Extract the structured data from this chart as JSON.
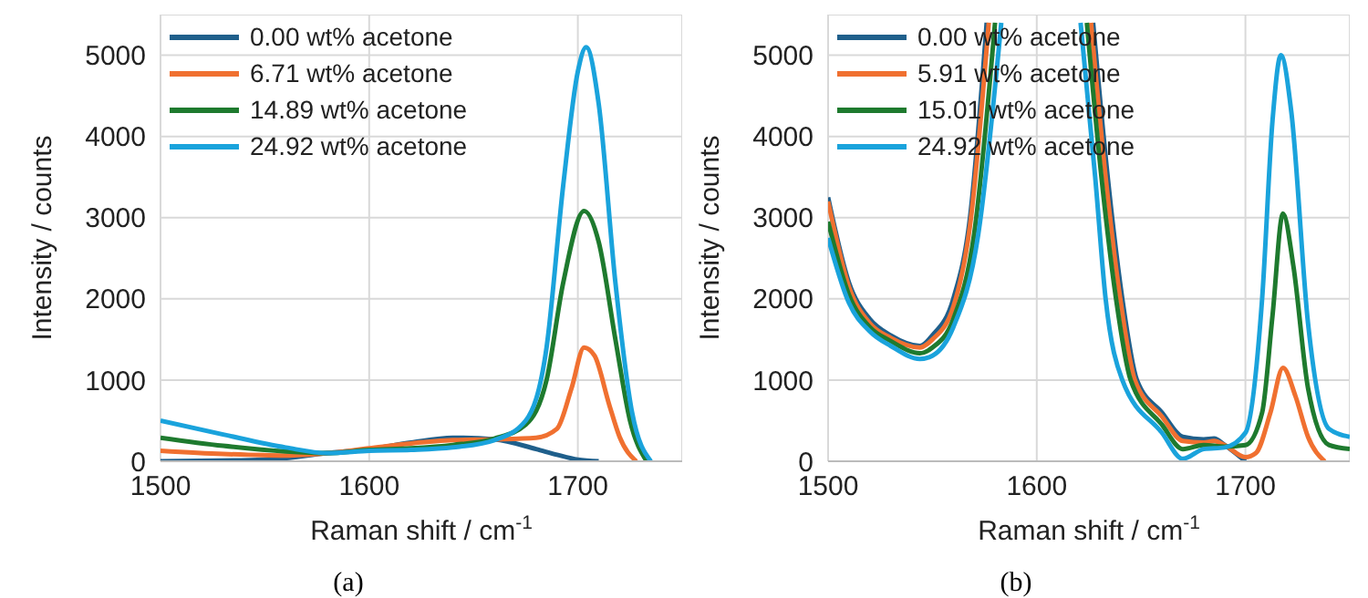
{
  "chart_data": [
    {
      "type": "line",
      "xlabel": "Raman shift / cm$^{-1}$",
      "ylabel": "Intensity / counts",
      "xlim": [
        1500,
        1750
      ],
      "xticks": [
        1500,
        1600,
        1700
      ],
      "ylim": [
        0,
        5500
      ],
      "yticks": [
        0,
        1000,
        2000,
        3000,
        4000,
        5000
      ],
      "grid": true,
      "legend": "top left",
      "marker": "none",
      "line_style": "solid",
      "annotations": [
        "(a)"
      ],
      "series": [
        {
          "name": "0.00 wt% acetone",
          "color": "#1f5f8b",
          "x": [
            1500,
            1550,
            1580,
            1600,
            1620,
            1640,
            1660,
            1680,
            1690,
            1700,
            1710
          ],
          "values": [
            0,
            20,
            100,
            150,
            230,
            290,
            270,
            150,
            80,
            20,
            0
          ]
        },
        {
          "name": "6.71 wt% acetone",
          "color": "#f07030",
          "x": [
            1500,
            1530,
            1560,
            1580,
            1600,
            1620,
            1640,
            1660,
            1680,
            1690,
            1697,
            1703,
            1708,
            1715,
            1720,
            1728
          ],
          "values": [
            130,
            90,
            70,
            100,
            160,
            220,
            260,
            270,
            290,
            400,
            900,
            1400,
            1300,
            700,
            300,
            0
          ]
        },
        {
          "name": "14.89 wt% acetone",
          "color": "#1e7a2e",
          "x": [
            1500,
            1530,
            1560,
            1580,
            1600,
            1620,
            1640,
            1660,
            1675,
            1685,
            1693,
            1703,
            1710,
            1718,
            1725,
            1733
          ],
          "values": [
            290,
            190,
            120,
            100,
            140,
            160,
            200,
            280,
            450,
            1000,
            2200,
            3080,
            2700,
            1500,
            500,
            0
          ]
        },
        {
          "name": "24.92 wt% acetone",
          "color": "#1aa3dc",
          "x": [
            1500,
            1530,
            1560,
            1580,
            1600,
            1620,
            1640,
            1660,
            1675,
            1685,
            1693,
            1700,
            1704,
            1710,
            1718,
            1726,
            1735
          ],
          "values": [
            500,
            330,
            170,
            100,
            130,
            140,
            170,
            260,
            500,
            1400,
            3400,
            4800,
            5100,
            4400,
            2200,
            600,
            0
          ]
        }
      ]
    },
    {
      "type": "line",
      "xlabel": "Raman shift / cm$^{-1}$",
      "ylabel": "Intensity / counts",
      "xlim": [
        1500,
        1750
      ],
      "xticks": [
        1500,
        1600,
        1700
      ],
      "ylim": [
        0,
        5500
      ],
      "yticks": [
        0,
        1000,
        2000,
        3000,
        4000,
        5000
      ],
      "grid": true,
      "legend": "top left",
      "marker": "none",
      "line_style": "solid",
      "annotations": [
        "(b)"
      ],
      "series": [
        {
          "name": "0.00 wt% acetone",
          "color": "#1f5f8b",
          "x": [
            1500,
            1510,
            1520,
            1530,
            1544,
            1550,
            1560,
            1568,
            1576,
            1600,
            1627,
            1634,
            1641,
            1648,
            1660,
            1670,
            1680,
            1685,
            1690,
            1700
          ],
          "values": [
            3250,
            2200,
            1750,
            1550,
            1420,
            1550,
            2000,
            3000,
            5400,
            null,
            5400,
            3500,
            2000,
            1000,
            600,
            300,
            270,
            280,
            200,
            0
          ]
        },
        {
          "name": "5.91 wt% acetone",
          "color": "#f07030",
          "x": [
            1500,
            1510,
            1520,
            1530,
            1544,
            1550,
            1560,
            1568,
            1577,
            1600,
            1626,
            1633,
            1640,
            1647,
            1660,
            1670,
            1680,
            1685,
            1690,
            1700,
            1705,
            1712,
            1718,
            1724,
            1730,
            1738
          ],
          "values": [
            3200,
            2150,
            1700,
            1520,
            1400,
            1500,
            1900,
            2900,
            5400,
            null,
            5400,
            3500,
            2000,
            1000,
            550,
            250,
            230,
            250,
            200,
            50,
            100,
            600,
            1150,
            800,
            300,
            0
          ]
        },
        {
          "name": "15.01 wt% acetone",
          "color": "#1e7a2e",
          "x": [
            1500,
            1510,
            1520,
            1530,
            1544,
            1550,
            1560,
            1570,
            1580,
            1600,
            1624,
            1631,
            1638,
            1645,
            1660,
            1670,
            1680,
            1690,
            1700,
            1708,
            1713,
            1718,
            1723,
            1730,
            1740,
            1750
          ],
          "values": [
            2950,
            2050,
            1650,
            1480,
            1330,
            1400,
            1750,
            2800,
            5400,
            null,
            5400,
            3500,
            2000,
            1000,
            450,
            150,
            200,
            180,
            200,
            600,
            1800,
            3050,
            2400,
            900,
            200,
            150
          ]
        },
        {
          "name": "24.92 wt% acetone",
          "color": "#1aa3dc",
          "x": [
            1500,
            1510,
            1520,
            1530,
            1544,
            1550,
            1560,
            1572,
            1583,
            1600,
            1621,
            1628,
            1633,
            1641,
            1660,
            1670,
            1680,
            1690,
            1700,
            1708,
            1713,
            1717,
            1722,
            1730,
            1740,
            1750
          ],
          "values": [
            2750,
            1950,
            1600,
            1420,
            1260,
            1300,
            1650,
            2800,
            5400,
            null,
            5400,
            3500,
            2000,
            1000,
            350,
            30,
            150,
            170,
            350,
            2000,
            4200,
            5000,
            4300,
            1700,
            400,
            300
          ]
        }
      ]
    }
  ]
}
